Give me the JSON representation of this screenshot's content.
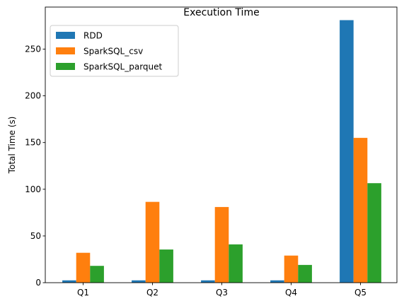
{
  "chart_data": {
    "type": "bar",
    "title": "Execution Time",
    "xlabel": "",
    "ylabel": "Total Time (s)",
    "categories": [
      "Q1",
      "Q2",
      "Q3",
      "Q4",
      "Q5"
    ],
    "series": [
      {
        "name": "RDD",
        "color": "#1f77b4",
        "values": [
          2.5,
          2.5,
          2.5,
          2.5,
          281
        ]
      },
      {
        "name": "SparkSQL_csv",
        "color": "#ff7f0e",
        "values": [
          32,
          86.5,
          81,
          29,
          155
        ]
      },
      {
        "name": "SparkSQL_parquet",
        "color": "#2ca02c",
        "values": [
          18,
          35.5,
          41,
          19,
          106.5
        ]
      }
    ],
    "ylim": [
      0,
      295
    ],
    "yticks": [
      0,
      50,
      100,
      150,
      200,
      250
    ],
    "legend": "top-left",
    "grid": false
  }
}
